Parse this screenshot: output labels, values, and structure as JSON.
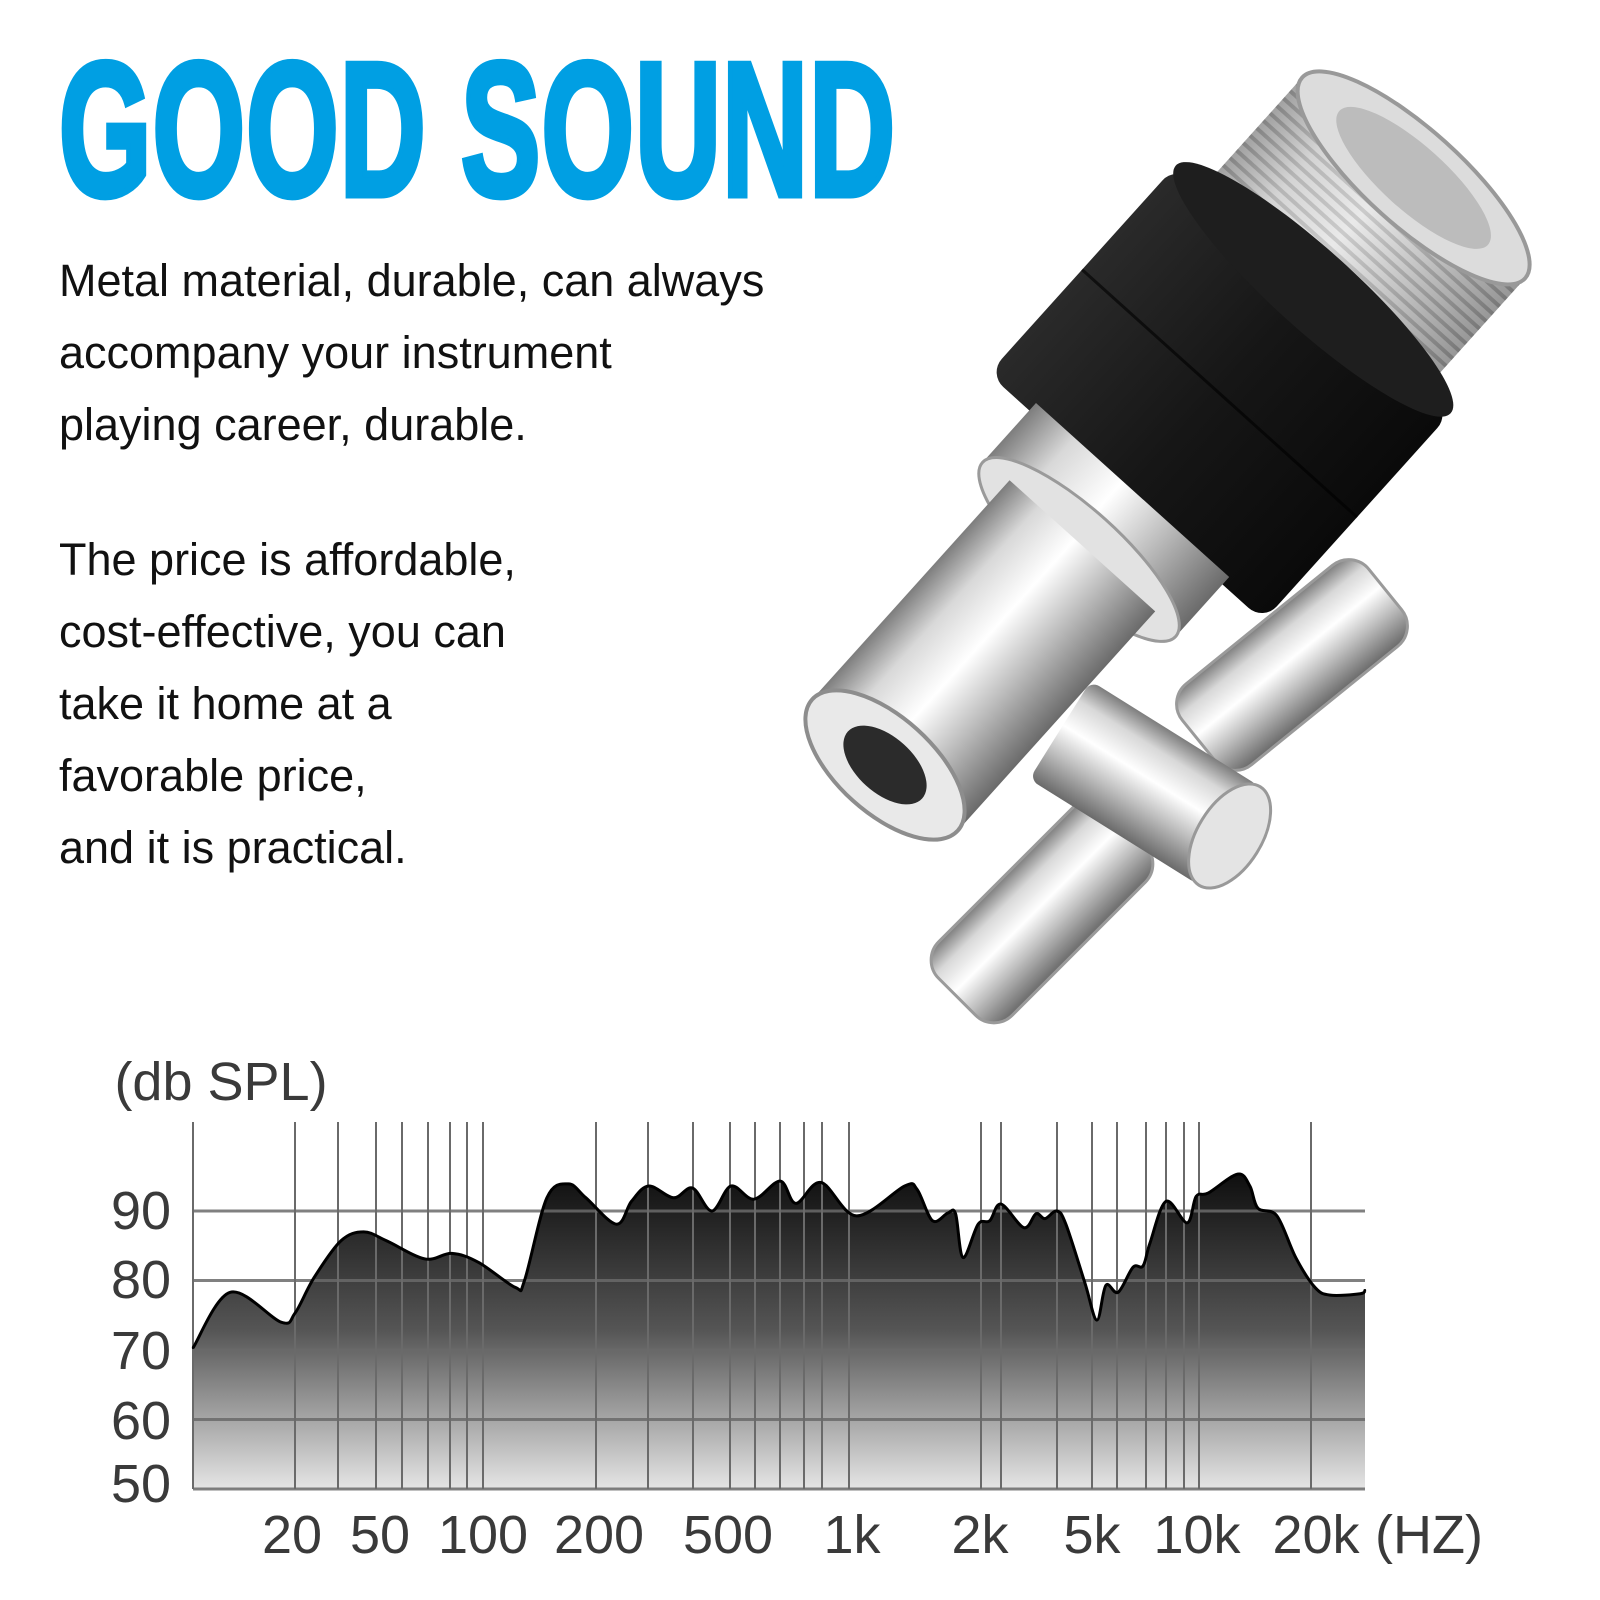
{
  "headline": "GOOD SOUND",
  "colors": {
    "headline": "#009fe3",
    "text": "#111111",
    "chart_fill_top": "#0d0d0d",
    "chart_fill_bottom": "#e6e6e6"
  },
  "paragraphs": [
    {
      "lines": [
        "Metal material, durable, can always",
        "accompany your instrument",
        "playing career, durable."
      ]
    },
    {
      "lines": [
        "The price is affordable,",
        "cost-effective, you can",
        "take it home at a",
        "favorable price,",
        "and it is practical."
      ]
    }
  ],
  "product_image": {
    "subject": "hi-hat clutch with felt, thumb nut and wing screw"
  },
  "chart_data": {
    "type": "area",
    "ylabel": "(db SPL)",
    "xlabel": "(HZ)",
    "x_scale": "log",
    "x_ticks": [
      "20",
      "50",
      "100",
      "200",
      "500",
      "1k",
      "2k",
      "5k",
      "10k",
      "20k"
    ],
    "x_tick_values": [
      20,
      50,
      100,
      200,
      500,
      1000,
      2000,
      5000,
      10000,
      20000
    ],
    "y_ticks": [
      "90",
      "80",
      "70",
      "60",
      "50"
    ],
    "y_tick_values": [
      90,
      80,
      70,
      60,
      50
    ],
    "xlim": [
      6.3,
      27900
    ],
    "ylim": [
      50,
      103
    ],
    "grid": true,
    "points": [
      [
        6.3,
        70.3
      ],
      [
        9.6,
        78.3
      ],
      [
        17.1,
        74
      ],
      [
        20,
        75.3
      ],
      [
        24.8,
        80.4
      ],
      [
        33.6,
        85.7
      ],
      [
        43.5,
        87
      ],
      [
        53.6,
        85.7
      ],
      [
        68.7,
        83.1
      ],
      [
        81.7,
        83.9
      ],
      [
        97.2,
        82.6
      ],
      [
        122,
        79
      ],
      [
        129,
        80
      ],
      [
        148,
        91.9
      ],
      [
        169,
        93.9
      ],
      [
        188,
        91.9
      ],
      [
        230,
        88.1
      ],
      [
        255,
        91.4
      ],
      [
        287,
        93.6
      ],
      [
        340,
        91.9
      ],
      [
        387,
        93.3
      ],
      [
        442,
        90
      ],
      [
        503,
        93.6
      ],
      [
        575,
        91.7
      ],
      [
        670,
        94.3
      ],
      [
        734,
        91.1
      ],
      [
        850,
        94.1
      ],
      [
        1040,
        89.3
      ],
      [
        1340,
        93.6
      ],
      [
        1430,
        93.1
      ],
      [
        1550,
        88.6
      ],
      [
        1680,
        89.7
      ],
      [
        1750,
        89.6
      ],
      [
        1820,
        83.3
      ],
      [
        1970,
        88.1
      ],
      [
        2150,
        88.6
      ],
      [
        2360,
        91
      ],
      [
        2850,
        87.6
      ],
      [
        3150,
        89.6
      ],
      [
        3390,
        88.9
      ],
      [
        3740,
        90
      ],
      [
        4030,
        88.1
      ],
      [
        4720,
        79.6
      ],
      [
        5160,
        74.3
      ],
      [
        5470,
        79.3
      ],
      [
        5920,
        78.3
      ],
      [
        6520,
        81.9
      ],
      [
        6960,
        82.1
      ],
      [
        7280,
        85.4
      ],
      [
        8080,
        91.4
      ],
      [
        9260,
        88.3
      ],
      [
        9820,
        92.1
      ],
      [
        10600,
        92.6
      ],
      [
        12700,
        95.3
      ],
      [
        13700,
        93.6
      ],
      [
        14400,
        90.4
      ],
      [
        16200,
        89.3
      ],
      [
        18200,
        83.3
      ],
      [
        20500,
        79
      ],
      [
        22500,
        77.9
      ],
      [
        27100,
        78.1
      ],
      [
        27900,
        78.6
      ]
    ]
  }
}
